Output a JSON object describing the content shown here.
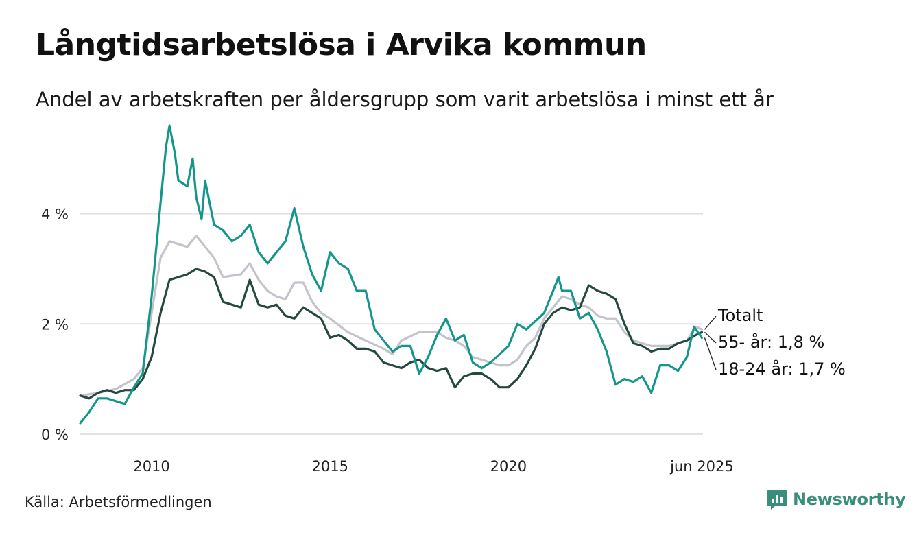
{
  "header": {
    "title": "Långtidsarbetslösa i Arvika kommun",
    "subtitle": "Andel av arbetskraften per åldersgrupp som varit arbetslösa i minst ett år"
  },
  "footer": {
    "source": "Källa: Arbetsförmedlingen",
    "brand": "Newsworthy",
    "brand_icon": "newsworthy-logo-icon"
  },
  "colors": {
    "totalt": "#c3c3cb",
    "age_55": "#24493f",
    "age_18_24": "#14978a",
    "grid": "#e2e2e2",
    "brand": "#3a8f7c"
  },
  "chart_data": {
    "type": "line",
    "ylim": [
      0,
      5.6
    ],
    "xlim": [
      2008.0,
      2025.45
    ],
    "y_ticks": [
      {
        "value": 0,
        "label": "0 %"
      },
      {
        "value": 2,
        "label": "2 %"
      },
      {
        "value": 4,
        "label": "4 %"
      }
    ],
    "x_ticks": [
      {
        "value": 2010,
        "label": "2010"
      },
      {
        "value": 2015,
        "label": "2015"
      },
      {
        "value": 2020,
        "label": "2020"
      },
      {
        "value": 2025.42,
        "label": "jun 2025"
      }
    ],
    "grid": true,
    "series": [
      {
        "key": "totalt",
        "name": "Totalt",
        "end_label": "Totalt",
        "points": [
          [
            2008.0,
            0.7
          ],
          [
            2008.5,
            0.75
          ],
          [
            2009.0,
            0.82
          ],
          [
            2009.5,
            1.0
          ],
          [
            2009.75,
            1.2
          ],
          [
            2010.0,
            2.2
          ],
          [
            2010.25,
            3.2
          ],
          [
            2010.5,
            3.5
          ],
          [
            2011.0,
            3.4
          ],
          [
            2011.25,
            3.6
          ],
          [
            2011.5,
            3.4
          ],
          [
            2011.75,
            3.2
          ],
          [
            2012.0,
            2.85
          ],
          [
            2012.5,
            2.9
          ],
          [
            2012.75,
            3.1
          ],
          [
            2013.0,
            2.8
          ],
          [
            2013.25,
            2.6
          ],
          [
            2013.5,
            2.5
          ],
          [
            2013.75,
            2.45
          ],
          [
            2014.0,
            2.75
          ],
          [
            2014.25,
            2.75
          ],
          [
            2014.5,
            2.4
          ],
          [
            2014.75,
            2.2
          ],
          [
            2015.0,
            2.1
          ],
          [
            2015.5,
            1.85
          ],
          [
            2016.0,
            1.7
          ],
          [
            2016.5,
            1.55
          ],
          [
            2016.75,
            1.45
          ],
          [
            2017.0,
            1.7
          ],
          [
            2017.5,
            1.85
          ],
          [
            2018.0,
            1.85
          ],
          [
            2018.25,
            1.75
          ],
          [
            2018.5,
            1.7
          ],
          [
            2018.75,
            1.6
          ],
          [
            2019.0,
            1.4
          ],
          [
            2019.5,
            1.3
          ],
          [
            2019.75,
            1.25
          ],
          [
            2020.0,
            1.25
          ],
          [
            2020.25,
            1.35
          ],
          [
            2020.5,
            1.6
          ],
          [
            2020.75,
            1.75
          ],
          [
            2021.0,
            2.1
          ],
          [
            2021.25,
            2.3
          ],
          [
            2021.5,
            2.5
          ],
          [
            2021.75,
            2.45
          ],
          [
            2022.0,
            2.35
          ],
          [
            2022.25,
            2.3
          ],
          [
            2022.5,
            2.15
          ],
          [
            2022.75,
            2.1
          ],
          [
            2023.0,
            2.1
          ],
          [
            2023.25,
            1.85
          ],
          [
            2023.5,
            1.7
          ],
          [
            2023.75,
            1.65
          ],
          [
            2024.0,
            1.6
          ],
          [
            2024.5,
            1.6
          ],
          [
            2025.0,
            1.7
          ],
          [
            2025.25,
            1.95
          ],
          [
            2025.42,
            1.9
          ]
        ]
      },
      {
        "key": "age_55",
        "name": "55- år",
        "end_label": "55- år: 1,8 %",
        "points": [
          [
            2008.0,
            0.7
          ],
          [
            2008.25,
            0.65
          ],
          [
            2008.5,
            0.75
          ],
          [
            2008.75,
            0.8
          ],
          [
            2009.0,
            0.75
          ],
          [
            2009.25,
            0.8
          ],
          [
            2009.5,
            0.8
          ],
          [
            2009.75,
            1.0
          ],
          [
            2010.0,
            1.4
          ],
          [
            2010.25,
            2.2
          ],
          [
            2010.5,
            2.8
          ],
          [
            2010.75,
            2.85
          ],
          [
            2011.0,
            2.9
          ],
          [
            2011.25,
            3.0
          ],
          [
            2011.5,
            2.95
          ],
          [
            2011.75,
            2.85
          ],
          [
            2012.0,
            2.4
          ],
          [
            2012.25,
            2.35
          ],
          [
            2012.5,
            2.3
          ],
          [
            2012.75,
            2.8
          ],
          [
            2013.0,
            2.35
          ],
          [
            2013.25,
            2.3
          ],
          [
            2013.5,
            2.35
          ],
          [
            2013.75,
            2.15
          ],
          [
            2014.0,
            2.1
          ],
          [
            2014.25,
            2.3
          ],
          [
            2014.5,
            2.2
          ],
          [
            2014.75,
            2.1
          ],
          [
            2015.0,
            1.75
          ],
          [
            2015.25,
            1.8
          ],
          [
            2015.5,
            1.7
          ],
          [
            2015.75,
            1.55
          ],
          [
            2016.0,
            1.55
          ],
          [
            2016.25,
            1.5
          ],
          [
            2016.5,
            1.3
          ],
          [
            2016.75,
            1.25
          ],
          [
            2017.0,
            1.2
          ],
          [
            2017.25,
            1.3
          ],
          [
            2017.5,
            1.35
          ],
          [
            2017.75,
            1.2
          ],
          [
            2018.0,
            1.15
          ],
          [
            2018.25,
            1.2
          ],
          [
            2018.5,
            0.85
          ],
          [
            2018.75,
            1.05
          ],
          [
            2019.0,
            1.1
          ],
          [
            2019.25,
            1.1
          ],
          [
            2019.5,
            1.0
          ],
          [
            2019.75,
            0.85
          ],
          [
            2020.0,
            0.85
          ],
          [
            2020.25,
            1.0
          ],
          [
            2020.5,
            1.25
          ],
          [
            2020.75,
            1.55
          ],
          [
            2021.0,
            2.0
          ],
          [
            2021.25,
            2.2
          ],
          [
            2021.5,
            2.3
          ],
          [
            2021.75,
            2.25
          ],
          [
            2022.0,
            2.3
          ],
          [
            2022.25,
            2.7
          ],
          [
            2022.5,
            2.6
          ],
          [
            2022.75,
            2.55
          ],
          [
            2023.0,
            2.45
          ],
          [
            2023.25,
            2.0
          ],
          [
            2023.5,
            1.65
          ],
          [
            2023.75,
            1.6
          ],
          [
            2024.0,
            1.5
          ],
          [
            2024.25,
            1.55
          ],
          [
            2024.5,
            1.55
          ],
          [
            2024.75,
            1.65
          ],
          [
            2025.0,
            1.7
          ],
          [
            2025.25,
            1.8
          ],
          [
            2025.42,
            1.85
          ]
        ]
      },
      {
        "key": "age_18_24",
        "name": "18-24 år",
        "end_label": "18-24 år: 1,7 %",
        "points": [
          [
            2008.0,
            0.2
          ],
          [
            2008.25,
            0.4
          ],
          [
            2008.5,
            0.65
          ],
          [
            2008.75,
            0.65
          ],
          [
            2009.0,
            0.6
          ],
          [
            2009.25,
            0.55
          ],
          [
            2009.5,
            0.85
          ],
          [
            2009.75,
            1.1
          ],
          [
            2010.0,
            2.5
          ],
          [
            2010.25,
            4.2
          ],
          [
            2010.4,
            5.2
          ],
          [
            2010.5,
            5.6
          ],
          [
            2010.65,
            5.1
          ],
          [
            2010.75,
            4.6
          ],
          [
            2011.0,
            4.5
          ],
          [
            2011.15,
            5.0
          ],
          [
            2011.25,
            4.3
          ],
          [
            2011.4,
            3.9
          ],
          [
            2011.5,
            4.6
          ],
          [
            2011.75,
            3.8
          ],
          [
            2012.0,
            3.7
          ],
          [
            2012.25,
            3.5
          ],
          [
            2012.5,
            3.6
          ],
          [
            2012.75,
            3.8
          ],
          [
            2013.0,
            3.3
          ],
          [
            2013.25,
            3.1
          ],
          [
            2013.5,
            3.3
          ],
          [
            2013.75,
            3.5
          ],
          [
            2014.0,
            4.1
          ],
          [
            2014.25,
            3.4
          ],
          [
            2014.5,
            2.9
          ],
          [
            2014.75,
            2.6
          ],
          [
            2015.0,
            3.3
          ],
          [
            2015.25,
            3.1
          ],
          [
            2015.5,
            3.0
          ],
          [
            2015.75,
            2.6
          ],
          [
            2016.0,
            2.6
          ],
          [
            2016.25,
            1.9
          ],
          [
            2016.5,
            1.7
          ],
          [
            2016.75,
            1.5
          ],
          [
            2017.0,
            1.6
          ],
          [
            2017.25,
            1.6
          ],
          [
            2017.5,
            1.1
          ],
          [
            2017.75,
            1.4
          ],
          [
            2018.0,
            1.8
          ],
          [
            2018.25,
            2.1
          ],
          [
            2018.5,
            1.7
          ],
          [
            2018.75,
            1.8
          ],
          [
            2019.0,
            1.3
          ],
          [
            2019.25,
            1.2
          ],
          [
            2019.5,
            1.3
          ],
          [
            2019.75,
            1.45
          ],
          [
            2020.0,
            1.6
          ],
          [
            2020.25,
            2.0
          ],
          [
            2020.5,
            1.9
          ],
          [
            2020.75,
            2.05
          ],
          [
            2021.0,
            2.2
          ],
          [
            2021.25,
            2.6
          ],
          [
            2021.4,
            2.85
          ],
          [
            2021.5,
            2.6
          ],
          [
            2021.75,
            2.6
          ],
          [
            2022.0,
            2.1
          ],
          [
            2022.25,
            2.2
          ],
          [
            2022.5,
            1.9
          ],
          [
            2022.75,
            1.5
          ],
          [
            2023.0,
            0.9
          ],
          [
            2023.25,
            1.0
          ],
          [
            2023.5,
            0.95
          ],
          [
            2023.75,
            1.05
          ],
          [
            2024.0,
            0.75
          ],
          [
            2024.25,
            1.25
          ],
          [
            2024.5,
            1.25
          ],
          [
            2024.75,
            1.15
          ],
          [
            2025.0,
            1.4
          ],
          [
            2025.2,
            1.95
          ],
          [
            2025.42,
            1.75
          ]
        ]
      }
    ]
  }
}
